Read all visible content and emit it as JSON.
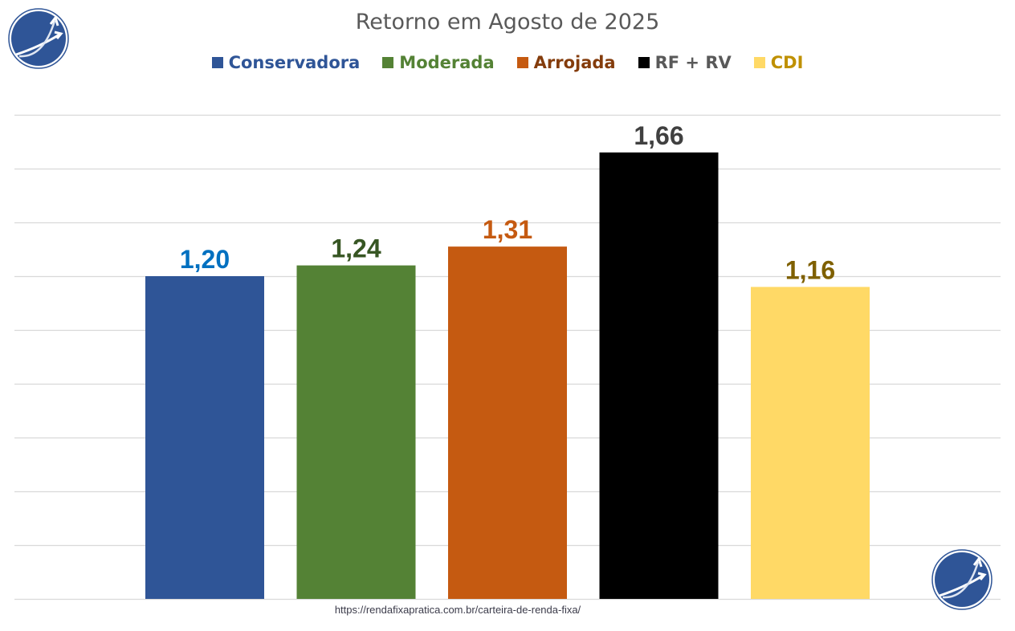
{
  "chart_data": {
    "type": "bar",
    "title": "Retorno em Agosto de 2025",
    "categories": [
      "Conservadora",
      "Moderada",
      "Arrojada",
      "RF + RV",
      "CDI"
    ],
    "values": [
      1.2,
      1.24,
      1.31,
      1.66,
      1.16
    ],
    "data_labels": [
      "1,20",
      "1,24",
      "1,31",
      "1,66",
      "1,16"
    ],
    "bar_colors": [
      "#2f5597",
      "#548235",
      "#c55a11",
      "#000000",
      "#ffd966"
    ],
    "label_colors": [
      "#0070c0",
      "#375623",
      "#c55a11",
      "#404040",
      "#7f6000"
    ],
    "legend": [
      {
        "label": "Conservadora",
        "swatch": "#2f5597",
        "text_color": "#2f5597"
      },
      {
        "label": "Moderada",
        "swatch": "#548235",
        "text_color": "#548235"
      },
      {
        "label": "Arrojada",
        "swatch": "#c55a11",
        "text_color": "#843c0c"
      },
      {
        "label": "RF + RV",
        "swatch": "#000000",
        "text_color": "#595959"
      },
      {
        "label": "CDI",
        "swatch": "#ffd966",
        "text_color": "#bf9000"
      }
    ],
    "legend_position": "top",
    "xlabel": "",
    "ylabel": "",
    "ylim": [
      0,
      1.8
    ],
    "grid_step": 0.2,
    "grid": true,
    "y_ticks_visible": false
  },
  "footer": {
    "url": "https://rendafixapratica.com.br/carteira-de-renda-fixa/"
  },
  "logos": {
    "icon": "ascending-arrows-circle-logo"
  }
}
